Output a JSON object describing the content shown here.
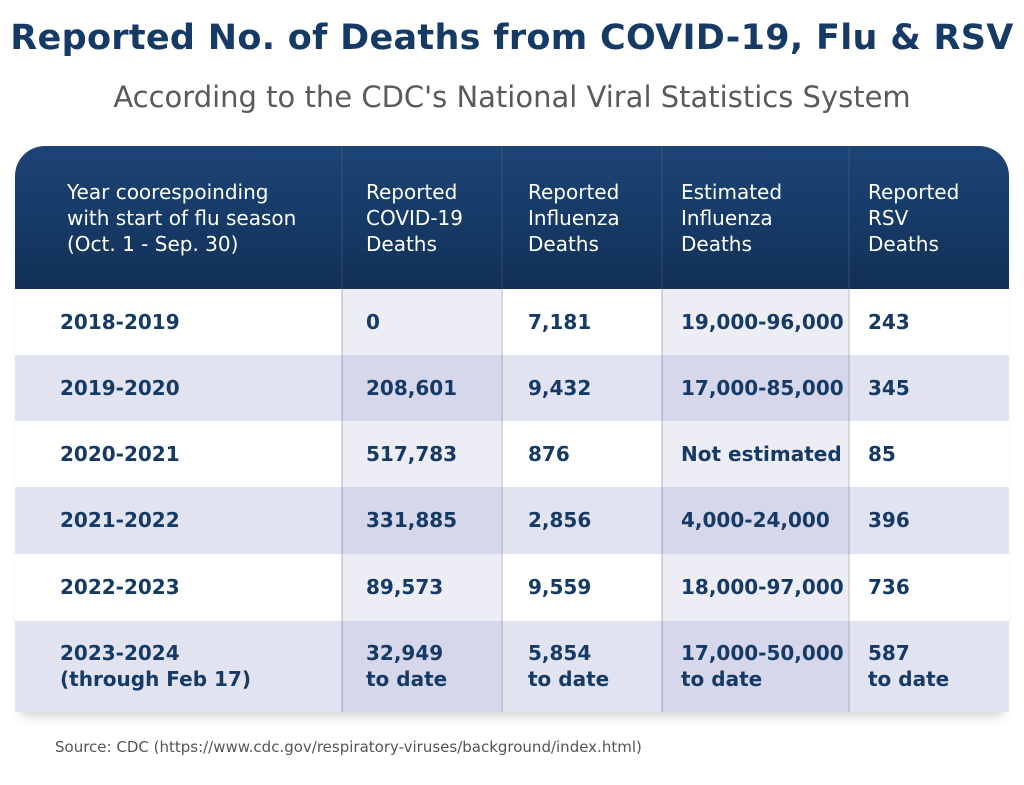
{
  "title": "Reported No. of Deaths from COVID-19, Flu & RSV",
  "subtitle": "According to the CDC's National Viral Statistics System",
  "source": "Source: CDC (https://www.cdc.gov/respiratory-viruses/background/index.html)",
  "colors": {
    "header_bg": "#163a66",
    "title_text": "#163a66",
    "row_alt_bg": "#e2e3f1",
    "highlight_col_bg": "#ededf6"
  },
  "chart_data": {
    "type": "table",
    "columns": [
      "Year coorespoinding\nwith start of flu season\n(Oct. 1 - Sep. 30)",
      "Reported\nCOVID-19\nDeaths",
      "Reported\nInfluenza\nDeaths",
      "Estimated\nInfluenza\nDeaths",
      "Reported\nRSV\nDeaths"
    ],
    "rows": [
      [
        "2018-2019",
        "0",
        "7,181",
        "19,000-96,000",
        "243"
      ],
      [
        "2019-2020",
        "208,601",
        "9,432",
        "17,000-85,000",
        "345"
      ],
      [
        "2020-2021",
        "517,783",
        "876",
        "Not estimated",
        "85"
      ],
      [
        "2021-2022",
        "331,885",
        "2,856",
        "4,000-24,000",
        "396"
      ],
      [
        "2022-2023",
        "89,573",
        "9,559",
        "18,000-97,000",
        "736"
      ],
      [
        "2023-2024\n(through Feb 17)",
        "32,949\nto date",
        "5,854\nto date",
        "17,000-50,000\nto date",
        "587\nto date"
      ]
    ]
  }
}
